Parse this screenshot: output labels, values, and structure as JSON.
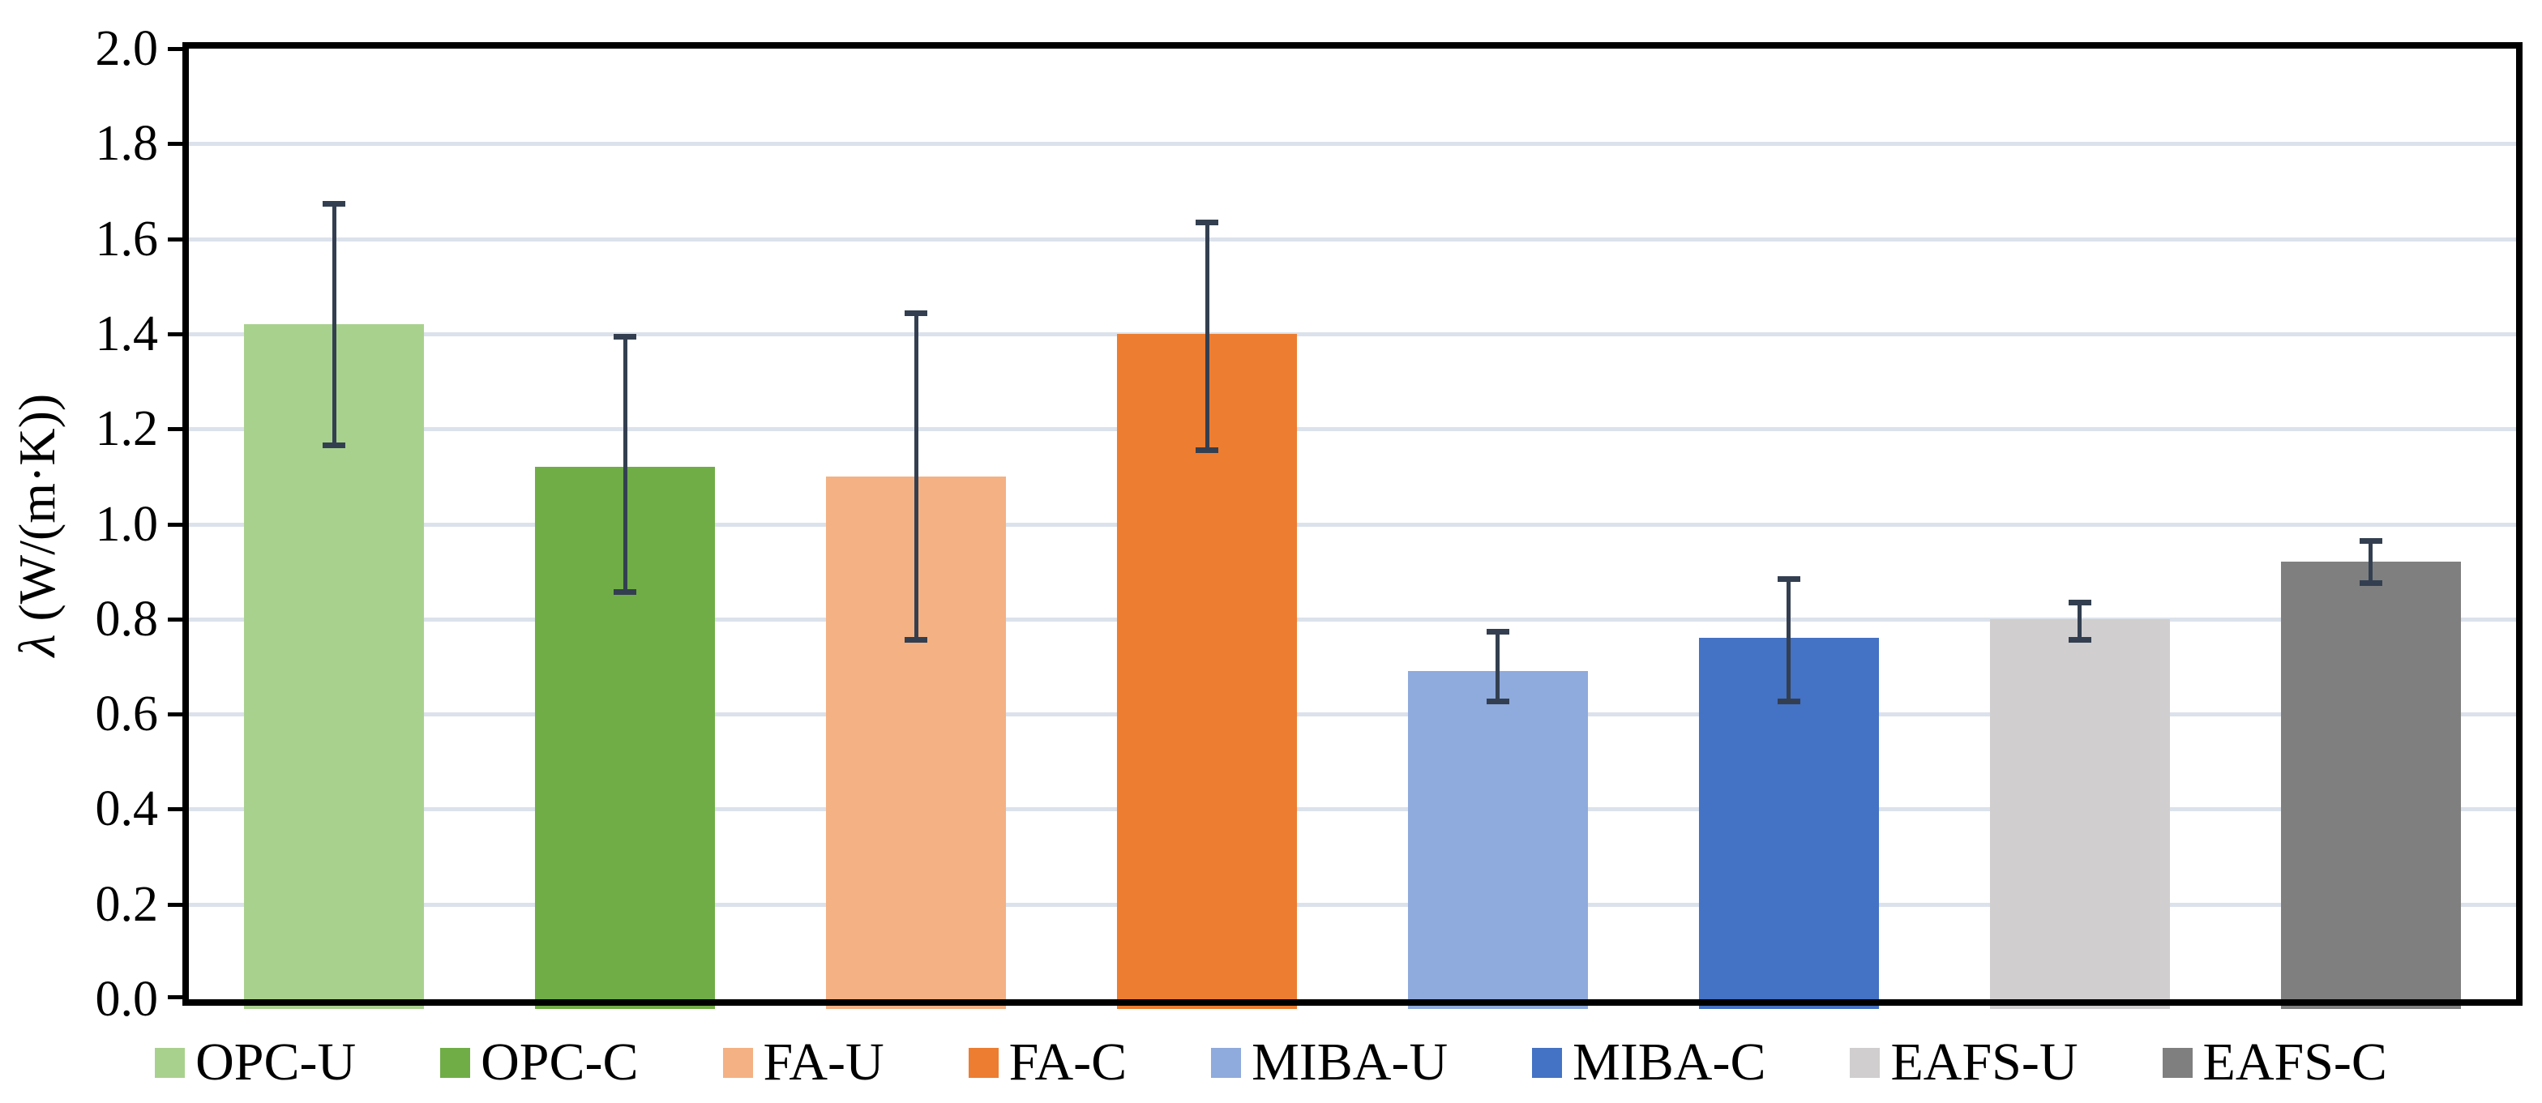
{
  "chart_data": {
    "type": "bar",
    "title": "",
    "ylabel_symbol": "λ",
    "ylabel_units": " (W/(m·K))",
    "categories": [
      "OPC-U",
      "OPC-C",
      "FA-U",
      "FA-C",
      "MIBA-U",
      "MIBA-C",
      "EAFS-U",
      "EAFS-C"
    ],
    "values": [
      1.42,
      1.12,
      1.1,
      1.4,
      0.69,
      0.76,
      0.8,
      0.92
    ],
    "error_lower": [
      1.16,
      0.85,
      0.75,
      1.15,
      0.62,
      0.62,
      0.75,
      0.87
    ],
    "error_upper": [
      1.68,
      1.4,
      1.45,
      1.64,
      0.78,
      0.89,
      0.84,
      0.97
    ],
    "bar_colors": [
      "#A9D18E",
      "#70AD47",
      "#F4B183",
      "#ED7D31",
      "#8FAADC",
      "#4472C4",
      "#D0CECE",
      "#7F7F7F"
    ],
    "error_bar_color": "#333F50",
    "gridline_color": "#DCE2EB",
    "axis_color": "#000000",
    "ylim": [
      0.0,
      2.0
    ],
    "ytick_step": 0.2,
    "ytick_labels": [
      "0.0",
      "0.2",
      "0.4",
      "0.6",
      "0.8",
      "1.0",
      "1.2",
      "1.4",
      "1.6",
      "1.8",
      "2.0"
    ],
    "grid": true,
    "legend_position": "bottom"
  }
}
